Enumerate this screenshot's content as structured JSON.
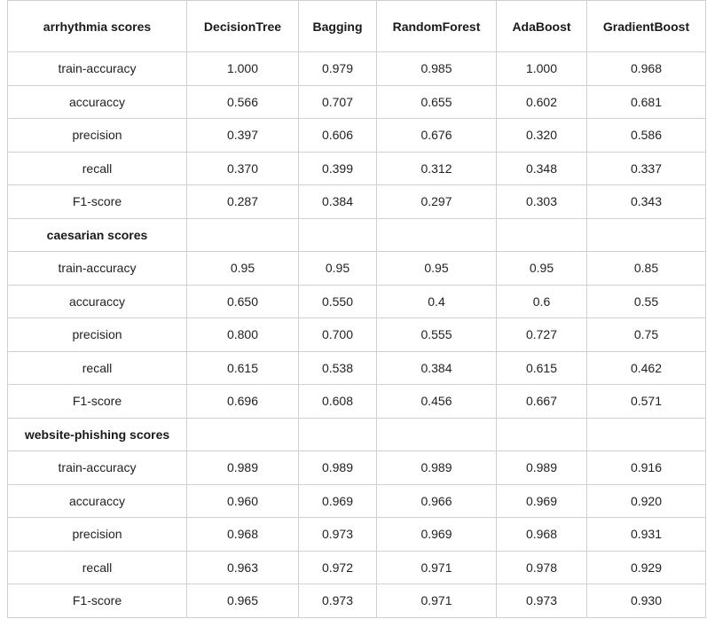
{
  "header": {
    "first": "arrhythmia scores",
    "models": [
      "DecisionTree",
      "Bagging",
      "RandomForest",
      "AdaBoost",
      "GradientBoost"
    ]
  },
  "metric_labels": [
    "train-accuracy",
    "accuraccy",
    "precision",
    "recall",
    "F1-score"
  ],
  "sections": [
    {
      "title": "arrhythmia scores",
      "rows": [
        [
          "1.000",
          "0.979",
          "0.985",
          "1.000",
          "0.968"
        ],
        [
          "0.566",
          "0.707",
          "0.655",
          "0.602",
          "0.681"
        ],
        [
          "0.397",
          "0.606",
          "0.676",
          "0.320",
          "0.586"
        ],
        [
          "0.370",
          "0.399",
          "0.312",
          "0.348",
          "0.337"
        ],
        [
          "0.287",
          "0.384",
          "0.297",
          "0.303",
          "0.343"
        ]
      ]
    },
    {
      "title": "caesarian scores",
      "rows": [
        [
          "0.95",
          "0.95",
          "0.95",
          "0.95",
          "0.85"
        ],
        [
          "0.650",
          "0.550",
          "0.4",
          "0.6",
          "0.55"
        ],
        [
          "0.800",
          "0.700",
          "0.555",
          "0.727",
          "0.75"
        ],
        [
          "0.615",
          "0.538",
          "0.384",
          "0.615",
          "0.462"
        ],
        [
          "0.696",
          "0.608",
          "0.456",
          "0.667",
          "0.571"
        ]
      ]
    },
    {
      "title": "website-phishing scores",
      "rows": [
        [
          "0.989",
          "0.989",
          "0.989",
          "0.989",
          "0.916"
        ],
        [
          "0.960",
          "0.969",
          "0.966",
          "0.969",
          "0.920"
        ],
        [
          "0.968",
          "0.973",
          "0.969",
          "0.968",
          "0.931"
        ],
        [
          "0.963",
          "0.972",
          "0.971",
          "0.978",
          "0.929"
        ],
        [
          "0.965",
          "0.973",
          "0.971",
          "0.973",
          "0.930"
        ]
      ]
    }
  ]
}
